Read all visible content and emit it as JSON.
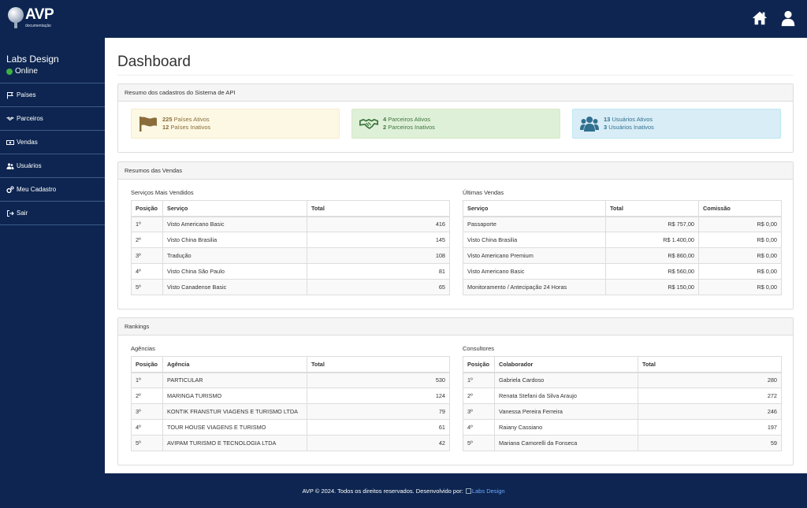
{
  "brand": {
    "name": "AVP",
    "subtitle": "documentação"
  },
  "header_icons": [
    "home-icon",
    "user-icon"
  ],
  "sidebar": {
    "user_name": "Labs Design",
    "status": "Online",
    "status_color": "#3cb043",
    "items": [
      {
        "label": "Países",
        "icon": "flag-icon"
      },
      {
        "label": "Parceiros",
        "icon": "handshake-icon"
      },
      {
        "label": "Vendas",
        "icon": "money-icon"
      },
      {
        "label": "Usuários",
        "icon": "users-icon"
      },
      {
        "label": "Meu Cadastro",
        "icon": "cogs-icon"
      },
      {
        "label": "Sair",
        "icon": "sign-out-icon"
      }
    ]
  },
  "main": {
    "title": "Dashboard"
  },
  "summary": {
    "heading": "Resumo dos cadastros do Sistema de API",
    "cards": [
      {
        "active_count": "225",
        "active_label": "Países Ativos",
        "inactive_count": "12",
        "inactive_label": "Países Inativos",
        "icon": "flag-icon",
        "bg": "#fcf8e3",
        "border": "#faebcc",
        "color": "#8a6d3b"
      },
      {
        "active_count": "4",
        "active_label": "Parceiros Ativos",
        "inactive_count": "2",
        "inactive_label": "Parceiros Inativos",
        "icon": "handshake-icon",
        "bg": "#dff0d8",
        "border": "#d6e9c6",
        "color": "#3c763d"
      },
      {
        "active_count": "13",
        "active_label": "Usuários Ativos",
        "inactive_count": "3",
        "inactive_label": "Usuários Inativos",
        "icon": "users-icon",
        "bg": "#d9edf7",
        "border": "#bce8f1",
        "color": "#31708f"
      }
    ]
  },
  "sales": {
    "heading": "Resumos das Vendas",
    "top_services": {
      "title": "Serviços Mais Vendidos",
      "columns": [
        "Posição",
        "Serviço",
        "Total"
      ],
      "rows": [
        [
          "1º",
          "Visto Americano Basic",
          "416"
        ],
        [
          "2º",
          "Visto China Brasilia",
          "145"
        ],
        [
          "3º",
          "Tradução",
          "108"
        ],
        [
          "4º",
          "Visto China São Paulo",
          "81"
        ],
        [
          "5º",
          "Visto Canadense Basic",
          "65"
        ]
      ]
    },
    "recent_sales": {
      "title": "Últimas Vendas",
      "columns": [
        "Serviço",
        "Total",
        "Comissão"
      ],
      "rows": [
        [
          "Passaporte",
          "R$ 757,00",
          "R$ 0,00"
        ],
        [
          "Visto China Brasilia",
          "R$ 1.400,00",
          "R$ 0,00"
        ],
        [
          "Visto Americano Premium",
          "R$ 860,00",
          "R$ 0,00"
        ],
        [
          "Visto Americano Basic",
          "R$ 560,00",
          "R$ 0,00"
        ],
        [
          "Monitoramento / Antecipação 24 Horas",
          "R$ 150,00",
          "R$ 0,00"
        ]
      ]
    }
  },
  "rankings": {
    "heading": "Rankings",
    "agencies": {
      "title": "Agências",
      "columns": [
        "Posição",
        "Agência",
        "Total"
      ],
      "rows": [
        [
          "1º",
          "PARTICULAR",
          "530"
        ],
        [
          "2º",
          "MARINGA TURISMO",
          "124"
        ],
        [
          "3º",
          "KONTIK FRANSTUR VIAGENS E TURISMO LTDA",
          "79"
        ],
        [
          "4º",
          "TOUR HOUSE VIAGENS E TURISMO",
          "61"
        ],
        [
          "5º",
          "AVIPAM TURISMO E TECNOLOGIA LTDA",
          "42"
        ]
      ]
    },
    "consultants": {
      "title": "Consultores",
      "columns": [
        "Posição",
        "Colaborador",
        "Total"
      ],
      "rows": [
        [
          "1º",
          "Gabriela Cardoso",
          "280"
        ],
        [
          "2º",
          "Renata Stefani da Silva Araujo",
          "272"
        ],
        [
          "3º",
          "Vanessa Pereira Ferreira",
          "246"
        ],
        [
          "4º",
          "Raiany Cassiano",
          "197"
        ],
        [
          "5º",
          "Mariana Camorelli da Fonseca",
          "59"
        ]
      ]
    }
  },
  "footer": {
    "text": "AVP © 2024. Todos os direitos reservados. Desenvolvido por:",
    "link": "Labs Design"
  }
}
